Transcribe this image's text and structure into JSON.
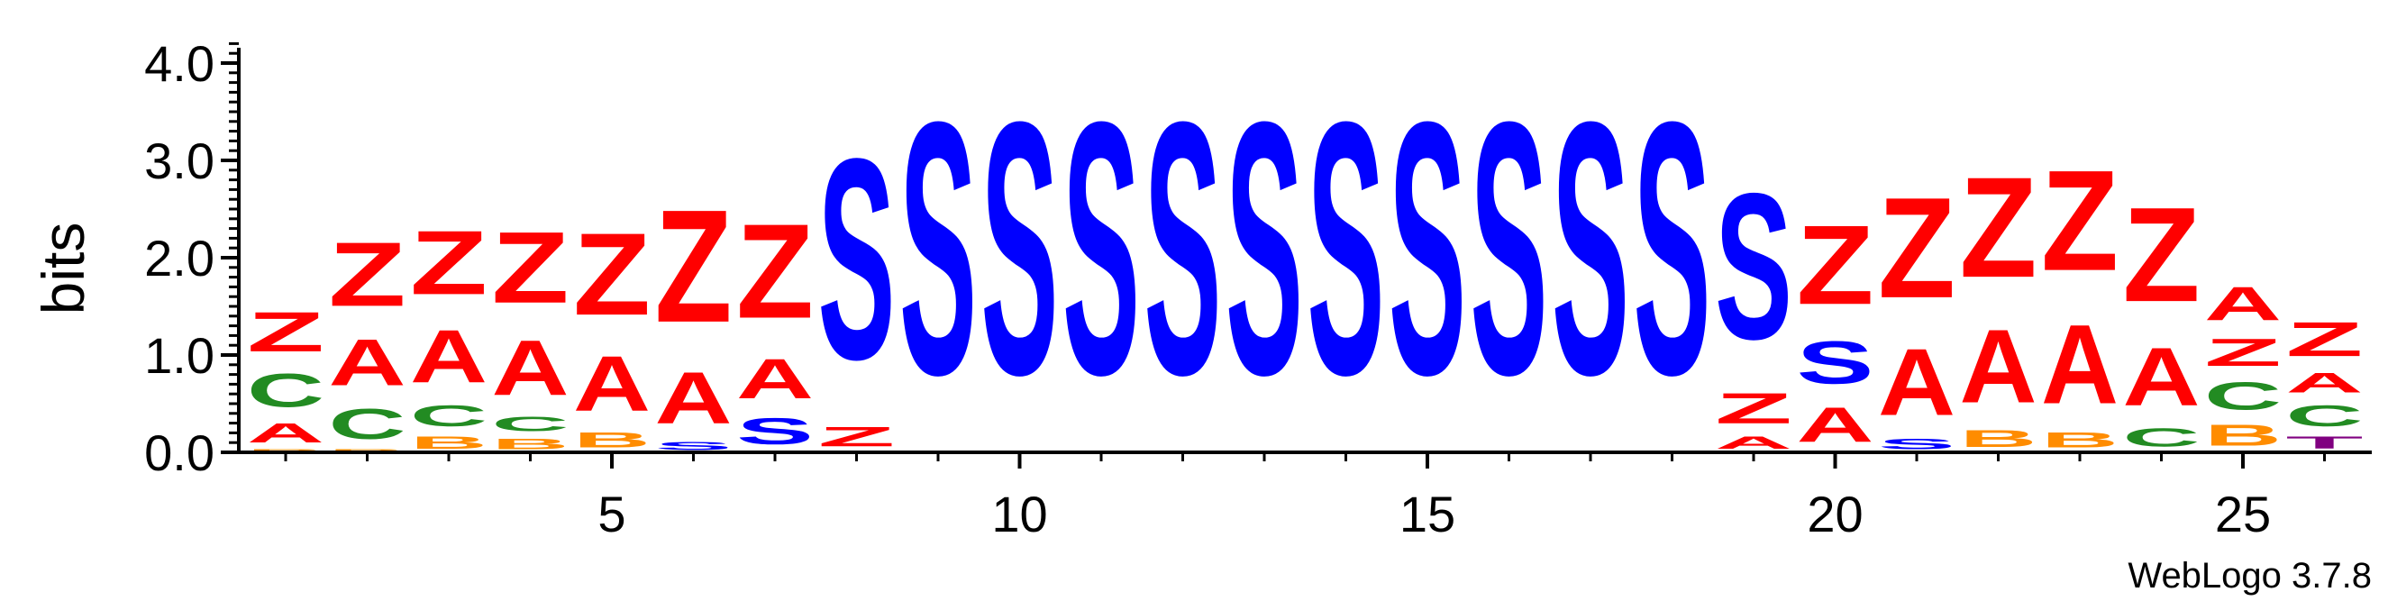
{
  "chart_data": {
    "type": "sequence-logo",
    "ylabel": "bits",
    "ylim": [
      0,
      4.2
    ],
    "y_ticks": [
      "0.0",
      "1.0",
      "2.0",
      "3.0",
      "4.0"
    ],
    "x_ticks": [
      "5",
      "10",
      "15",
      "20",
      "25"
    ],
    "x_tick_values": [
      5,
      10,
      15,
      20,
      25
    ],
    "footer": "WebLogo 3.7.8",
    "colors": {
      "A": "#ff0000",
      "Z": "#ff0000",
      "S": "#0000ff",
      "C": "#228b22",
      "B": "#ff8c00",
      "T": "#800080"
    },
    "positions": [
      {
        "pos": 1,
        "stack": [
          [
            "B",
            0.04
          ],
          [
            "A",
            0.32
          ],
          [
            "C",
            0.55
          ],
          [
            "Z",
            0.65
          ]
        ]
      },
      {
        "pos": 2,
        "stack": [
          [
            "B",
            0.04
          ],
          [
            "C",
            0.5
          ],
          [
            "A",
            0.76
          ],
          [
            "Z",
            1.05
          ]
        ]
      },
      {
        "pos": 3,
        "stack": [
          [
            "B",
            0.2
          ],
          [
            "C",
            0.35
          ],
          [
            "A",
            0.87
          ],
          [
            "Z",
            1.05
          ]
        ]
      },
      {
        "pos": 4,
        "stack": [
          [
            "B",
            0.17
          ],
          [
            "C",
            0.24
          ],
          [
            "A",
            0.9
          ],
          [
            "Z",
            1.17
          ]
        ]
      },
      {
        "pos": 5,
        "stack": [
          [
            "B",
            0.25
          ],
          [
            "A",
            0.9
          ],
          [
            "Z",
            1.35
          ]
        ]
      },
      {
        "pos": 6,
        "stack": [
          [
            "S",
            0.13
          ],
          [
            "A",
            0.85
          ],
          [
            "Z",
            1.85
          ]
        ]
      },
      {
        "pos": 7,
        "stack": [
          [
            "S",
            0.43
          ],
          [
            "A",
            0.65
          ],
          [
            "Z",
            1.55
          ]
        ]
      },
      {
        "pos": 8,
        "stack": [
          [
            "Z",
            0.32
          ],
          [
            "S",
            3.3
          ]
        ]
      },
      {
        "pos": 9,
        "stack": [
          [
            "S",
            4.15
          ]
        ]
      },
      {
        "pos": 10,
        "stack": [
          [
            "S",
            4.15
          ]
        ]
      },
      {
        "pos": 11,
        "stack": [
          [
            "S",
            4.15
          ]
        ]
      },
      {
        "pos": 12,
        "stack": [
          [
            "S",
            4.15
          ]
        ]
      },
      {
        "pos": 13,
        "stack": [
          [
            "S",
            4.15
          ]
        ]
      },
      {
        "pos": 14,
        "stack": [
          [
            "S",
            4.15
          ]
        ]
      },
      {
        "pos": 15,
        "stack": [
          [
            "S",
            4.15
          ]
        ]
      },
      {
        "pos": 16,
        "stack": [
          [
            "S",
            4.15
          ]
        ]
      },
      {
        "pos": 17,
        "stack": [
          [
            "S",
            4.15
          ]
        ]
      },
      {
        "pos": 18,
        "stack": [
          [
            "S",
            4.15
          ]
        ]
      },
      {
        "pos": 19,
        "stack": [
          [
            "A",
            0.2
          ],
          [
            "Z",
            0.5
          ],
          [
            "S",
            2.4
          ]
        ]
      },
      {
        "pos": 20,
        "stack": [
          [
            "A",
            0.57
          ],
          [
            "S",
            0.7
          ],
          [
            "Z",
            1.3
          ]
        ]
      },
      {
        "pos": 21,
        "stack": [
          [
            "S",
            0.17
          ],
          [
            "A",
            1.1
          ],
          [
            "Z",
            1.65
          ]
        ]
      },
      {
        "pos": 22,
        "stack": [
          [
            "B",
            0.28
          ],
          [
            "A",
            1.2
          ],
          [
            "Z",
            1.65
          ]
        ]
      },
      {
        "pos": 23,
        "stack": [
          [
            "B",
            0.25
          ],
          [
            "A",
            1.3
          ],
          [
            "Z",
            1.65
          ]
        ]
      },
      {
        "pos": 24,
        "stack": [
          [
            "C",
            0.3
          ],
          [
            "A",
            0.95
          ],
          [
            "Z",
            1.55
          ]
        ]
      },
      {
        "pos": 25,
        "stack": [
          [
            "B",
            0.35
          ],
          [
            "C",
            0.45
          ],
          [
            "Z",
            0.45
          ],
          [
            "A",
            0.55
          ]
        ]
      },
      {
        "pos": 26,
        "stack": [
          [
            "T",
            0.2
          ],
          [
            "C",
            0.35
          ],
          [
            "A",
            0.33
          ],
          [
            "Z",
            0.56
          ]
        ]
      }
    ]
  }
}
